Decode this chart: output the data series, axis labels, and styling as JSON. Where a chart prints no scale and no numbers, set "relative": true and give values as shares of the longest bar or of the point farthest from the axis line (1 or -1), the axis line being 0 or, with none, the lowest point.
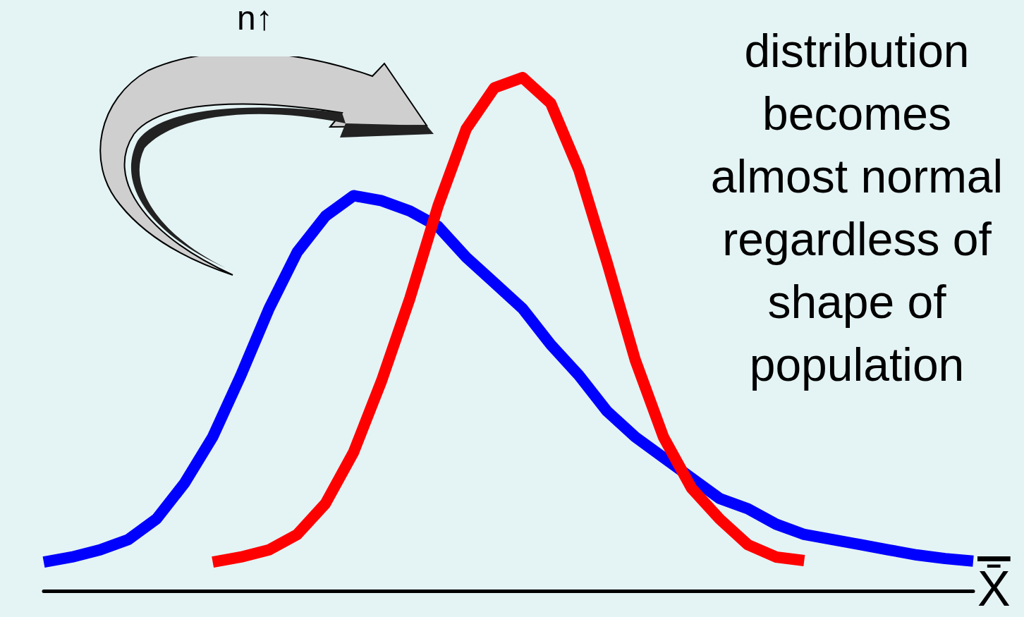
{
  "chart_data": {
    "type": "line",
    "relative": true,
    "xlabel": "X̄",
    "marker": "none",
    "line_style": "solid",
    "categories": [
      null,
      null,
      null,
      null,
      null,
      null,
      null,
      null,
      null,
      null,
      null,
      null,
      null,
      null,
      null,
      null,
      null,
      null,
      null,
      null,
      null,
      null,
      null,
      null,
      null,
      null,
      null,
      null,
      null,
      null,
      null,
      null,
      null,
      null
    ],
    "series": [
      {
        "color": "#0000ff",
        "values": [
          0.056,
          0.066,
          0.08,
          0.1,
          0.14,
          0.21,
          0.3,
          0.42,
          0.55,
          0.66,
          0.73,
          0.77,
          0.76,
          0.74,
          0.71,
          0.65,
          0.6,
          0.55,
          0.48,
          0.42,
          0.35,
          0.3,
          0.26,
          0.22,
          0.18,
          0.16,
          0.13,
          0.11,
          0.1,
          0.09,
          0.08,
          0.07,
          0.063,
          0.058
        ]
      },
      {
        "color": "#ff0000",
        "values": [
          null,
          null,
          null,
          null,
          null,
          null,
          0.056,
          0.066,
          0.08,
          0.11,
          0.17,
          0.27,
          0.41,
          0.57,
          0.75,
          0.9,
          0.98,
          1,
          0.95,
          0.82,
          0.64,
          0.45,
          0.3,
          0.2,
          0.14,
          0.09,
          0.066,
          0.059,
          null,
          null,
          null,
          null,
          null,
          null
        ]
      }
    ],
    "annotations": [
      "n↑",
      "distribution becomes almost normal regardless of shape of population"
    ]
  }
}
